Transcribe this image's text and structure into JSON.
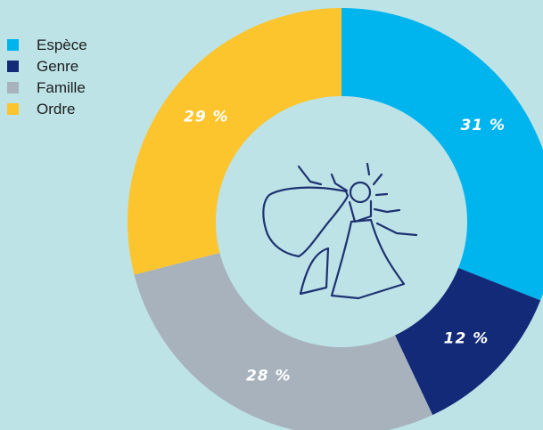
{
  "chart_data": {
    "type": "pie",
    "subtype": "donut",
    "categories": [
      "Espèce",
      "Genre",
      "Famille",
      "Ordre"
    ],
    "values": [
      31,
      12,
      28,
      29
    ],
    "labels": [
      "31 %",
      "12 %",
      "28 %",
      "29 %"
    ],
    "colors": [
      "#00b4ee",
      "#132a78",
      "#a7b2bd",
      "#fcc52e"
    ],
    "legend_position": "top-left",
    "center_icon": "moth-icon"
  },
  "legend": {
    "items": [
      {
        "label": "Espèce",
        "color": "#00b4ee"
      },
      {
        "label": "Genre",
        "color": "#132a78"
      },
      {
        "label": "Famille",
        "color": "#a7b2bd"
      },
      {
        "label": "Ordre",
        "color": "#fcc52e"
      }
    ]
  },
  "colors": {
    "background": "#bde3e7",
    "center": "#bde3e7",
    "icon_stroke": "#1e3170",
    "label_text": "#ffffff"
  }
}
